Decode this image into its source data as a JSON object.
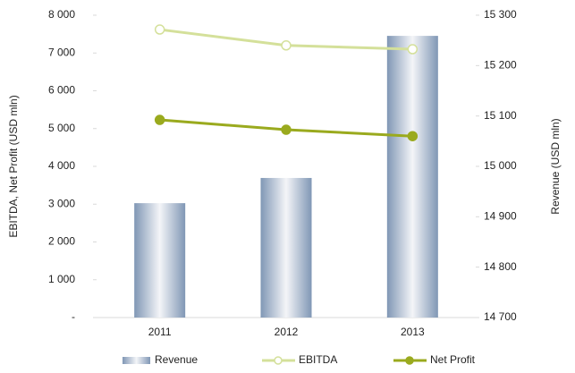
{
  "chart_data": {
    "type": "bar-line",
    "categories": [
      "2011",
      "2012",
      "2013"
    ],
    "series": [
      {
        "name": "Revenue",
        "type": "bar",
        "axis": "y2",
        "color": "#8097b5",
        "values": [
          14927,
          14977,
          15259
        ]
      },
      {
        "name": "EBITDA",
        "type": "line",
        "axis": "y",
        "color": "#d4e09a",
        "values": [
          7620,
          7200,
          7100
        ]
      },
      {
        "name": "Net Profit",
        "type": "line",
        "axis": "y",
        "color": "#9aaa1e",
        "values": [
          5230,
          4970,
          4800
        ]
      }
    ],
    "ylabel": "EBITDA, Net Profit   (USD mln)",
    "y2label": "Revenue (USD mln)",
    "ylim": [
      0,
      8000
    ],
    "yticks": [
      {
        "value": 0,
        "label": "-"
      },
      {
        "value": 1000,
        "label": "1 000"
      },
      {
        "value": 2000,
        "label": "2 000"
      },
      {
        "value": 3000,
        "label": "3 000"
      },
      {
        "value": 4000,
        "label": "4 000"
      },
      {
        "value": 5000,
        "label": "5 000"
      },
      {
        "value": 6000,
        "label": "6 000"
      },
      {
        "value": 7000,
        "label": "7 000"
      },
      {
        "value": 8000,
        "label": "8 000"
      }
    ],
    "y2lim": [
      14700,
      15300
    ],
    "y2ticks": [
      {
        "value": 14700,
        "label": "14 700"
      },
      {
        "value": 14800,
        "label": "14 800"
      },
      {
        "value": 14900,
        "label": "14 900"
      },
      {
        "value": 15000,
        "label": "15 000"
      },
      {
        "value": 15100,
        "label": "15 100"
      },
      {
        "value": 15200,
        "label": "15 200"
      },
      {
        "value": 15300,
        "label": "15 300"
      }
    ],
    "legend": "bottom",
    "grid": false
  }
}
